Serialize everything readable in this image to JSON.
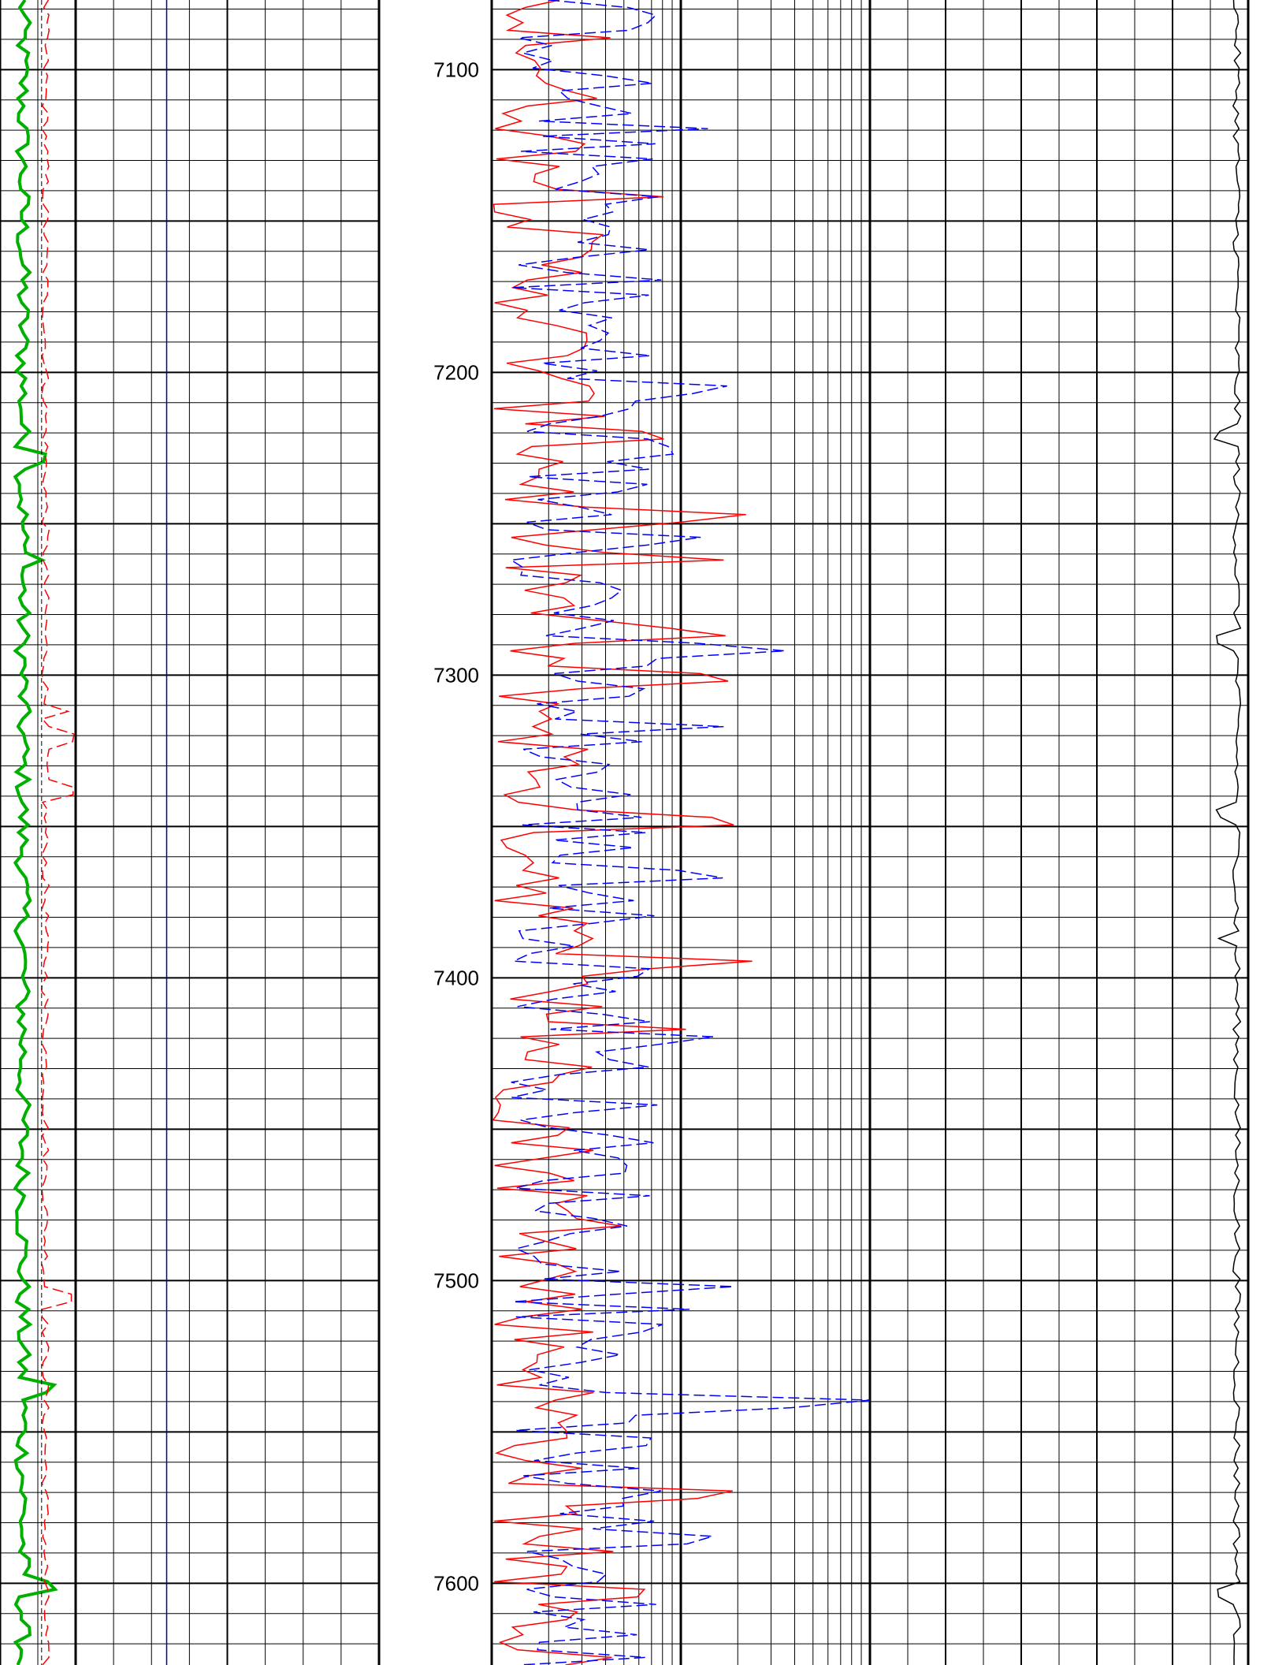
{
  "chart_data": {
    "type": "line",
    "title": "",
    "depth_axis": {
      "range": [
        7077,
        7627
      ],
      "labels": [
        {
          "value": 7100,
          "text": "7100"
        },
        {
          "value": 7200,
          "text": "7200"
        },
        {
          "value": 7300,
          "text": "7300"
        },
        {
          "value": 7400,
          "text": "7400"
        },
        {
          "value": 7500,
          "text": "7500"
        },
        {
          "value": 7600,
          "text": "7600"
        }
      ],
      "minor_step": 10,
      "major_step": 50
    },
    "grid": true,
    "tracks": [
      {
        "id": "track1",
        "scale": "linear",
        "series": [
          {
            "color": "#00b000",
            "style": "solid",
            "baseline": 0.3,
            "amplitude": 0.1,
            "spike_depths": [
              7228,
              7262,
              7535,
              7600
            ]
          },
          {
            "color": "#ff0000",
            "style": "dashed",
            "baseline": 0.6,
            "amplitude": 0.05,
            "spike_depths": [
              7312,
              7320,
              7338,
              7505
            ]
          },
          {
            "color": "#000000",
            "style": "dashed-thin",
            "baseline": 0.55,
            "amplitude": 0
          }
        ]
      },
      {
        "id": "track2",
        "scale": "linear",
        "series": [
          {
            "color": "#0000a0",
            "style": "solid",
            "baseline": 0.3,
            "amplitude": 0
          }
        ]
      },
      {
        "id": "track3",
        "scale": "logarithmic",
        "series": [
          {
            "color": "#ff0000",
            "style": "solid",
            "baseline": 0.15,
            "amplitude": 0.15,
            "spike_depths": [
              7220,
              7248,
              7286,
              7300,
              7348,
              7395,
              7417,
              7570,
              7603
            ]
          },
          {
            "color": "#0000ff",
            "style": "dashed",
            "baseline": 0.25,
            "amplitude": 0.2,
            "spike_depths": [
              7205,
              7255,
              7290,
              7365,
              7420,
              7540,
              7585
            ]
          }
        ]
      },
      {
        "id": "track4",
        "scale": "linear",
        "series": [
          {
            "color": "#000000",
            "style": "solid",
            "baseline": 0.97,
            "amplitude": 0.01,
            "spike_depths": [
              7220,
              7288,
              7345,
              7387,
              7604
            ]
          }
        ]
      }
    ]
  }
}
